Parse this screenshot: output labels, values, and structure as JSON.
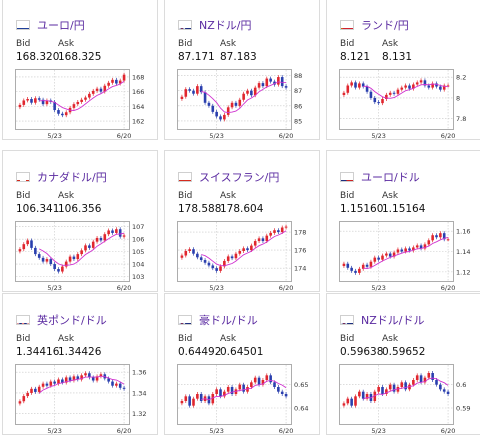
{
  "labels": {
    "bid": "Bid",
    "ask": "Ask"
  },
  "colors": {
    "title": "#5a2aa0",
    "up": "#e0262e",
    "down": "#2a3fae",
    "ma": "#d033d0",
    "grid": "#c8c8c8"
  },
  "cards": [
    {
      "title": "ユーロ/円",
      "flag": "eu-flag-icon",
      "bid": "168.320",
      "ask": "168.325",
      "chart_data": {
        "type": "candlestick",
        "x_ticks": [
          "5/23",
          "6/20"
        ],
        "y_ticks": [
          162,
          164,
          166,
          168
        ],
        "ylim": [
          161.2,
          168.8
        ],
        "closes": [
          164.2,
          164.8,
          165.0,
          164.5,
          165.1,
          164.9,
          164.3,
          164.8,
          164.6,
          163.5,
          163.0,
          162.8,
          163.2,
          163.8,
          164.3,
          164.6,
          164.9,
          165.2,
          165.7,
          166.1,
          166.4,
          166.0,
          166.8,
          167.2,
          167.6,
          167.1,
          167.5,
          168.3
        ]
      }
    },
    {
      "title": "NZドル/円",
      "flag": "nz-flag-icon",
      "bid": "87.171",
      "ask": "87.183",
      "chart_data": {
        "type": "candlestick",
        "x_ticks": [
          "5/23",
          "6/20"
        ],
        "y_ticks": [
          85,
          86,
          87,
          88
        ],
        "ylim": [
          84.6,
          88.3
        ],
        "closes": [
          86.6,
          87.1,
          87.0,
          86.8,
          87.3,
          86.9,
          86.2,
          86.0,
          85.6,
          85.3,
          85.1,
          85.4,
          85.9,
          86.2,
          86.0,
          86.4,
          86.8,
          87.0,
          86.7,
          87.2,
          87.5,
          87.3,
          87.8,
          87.6,
          87.4,
          87.9,
          87.3,
          87.2
        ]
      }
    },
    {
      "title": "ランド/円",
      "flag": "za-flag-icon",
      "bid": "8.121",
      "ask": "8.131",
      "chart_data": {
        "type": "candlestick",
        "x_ticks": [
          "5/23",
          "6/20"
        ],
        "y_ticks": [
          7.8,
          8,
          8.2
        ],
        "ylim": [
          7.72,
          8.26
        ],
        "closes": [
          8.05,
          8.12,
          8.15,
          8.1,
          8.14,
          8.11,
          8.06,
          8.0,
          7.96,
          7.95,
          7.99,
          8.03,
          8.05,
          8.04,
          8.08,
          8.1,
          8.12,
          8.09,
          8.13,
          8.15,
          8.17,
          8.12,
          8.1,
          8.14,
          8.11,
          8.08,
          8.12,
          8.12
        ]
      }
    },
    {
      "title": "カナダドル/円",
      "flag": "ca-flag-icon",
      "bid": "106.341",
      "ask": "106.356",
      "chart_data": {
        "type": "candlestick",
        "x_ticks": [
          "5/23",
          "6/20"
        ],
        "y_ticks": [
          103,
          104,
          105,
          106,
          107
        ],
        "ylim": [
          102.8,
          107.3
        ],
        "closes": [
          105.2,
          105.6,
          105.9,
          105.3,
          104.8,
          104.5,
          104.2,
          104.4,
          104.0,
          103.6,
          103.4,
          103.8,
          104.2,
          104.6,
          104.4,
          104.8,
          105.1,
          105.5,
          105.3,
          105.8,
          106.1,
          105.9,
          106.4,
          106.7,
          106.5,
          106.8,
          106.2,
          106.3
        ]
      }
    },
    {
      "title": "スイスフラン/円",
      "flag": "ch-flag-icon",
      "bid": "178.588",
      "ask": "178.604",
      "chart_data": {
        "type": "candlestick",
        "x_ticks": [
          "5/23",
          "6/20"
        ],
        "y_ticks": [
          174,
          176,
          178
        ],
        "ylim": [
          172.8,
          179.0
        ],
        "closes": [
          175.4,
          175.9,
          176.1,
          175.6,
          175.2,
          174.9,
          174.6,
          174.3,
          174.0,
          173.7,
          174.2,
          174.8,
          175.3,
          175.1,
          175.6,
          175.9,
          176.2,
          176.0,
          176.5,
          177.0,
          177.3,
          177.0,
          177.6,
          177.9,
          178.2,
          178.0,
          178.5,
          178.6
        ]
      }
    },
    {
      "title": "ユーロ/ドル",
      "flag": "us-flag-icon",
      "bid": "1.15160",
      "ask": "1.15164",
      "chart_data": {
        "type": "candlestick",
        "x_ticks": [
          "5/23",
          "6/20"
        ],
        "y_ticks": [
          1.12,
          1.14,
          1.16
        ],
        "ylim": [
          1.113,
          1.168
        ],
        "closes": [
          1.128,
          1.124,
          1.121,
          1.119,
          1.123,
          1.127,
          1.125,
          1.13,
          1.134,
          1.132,
          1.136,
          1.138,
          1.135,
          1.139,
          1.142,
          1.14,
          1.143,
          1.141,
          1.144,
          1.146,
          1.143,
          1.147,
          1.151,
          1.156,
          1.154,
          1.158,
          1.152,
          1.152
        ]
      }
    },
    {
      "title": "英ポンド/ドル",
      "flag": "uk-flag-icon",
      "bid": "1.34416",
      "ask": "1.34426",
      "chart_data": {
        "type": "candlestick",
        "x_ticks": [
          "5/23",
          "6/20"
        ],
        "y_ticks": [
          1.32,
          1.34,
          1.36
        ],
        "ylim": [
          1.312,
          1.366
        ],
        "closes": [
          1.332,
          1.337,
          1.34,
          1.344,
          1.341,
          1.346,
          1.349,
          1.347,
          1.351,
          1.349,
          1.353,
          1.35,
          1.355,
          1.352,
          1.356,
          1.353,
          1.357,
          1.359,
          1.355,
          1.352,
          1.356,
          1.358,
          1.354,
          1.351,
          1.347,
          1.349,
          1.345,
          1.344
        ]
      }
    },
    {
      "title": "豪ドル/ドル",
      "flag": "au-flag-icon",
      "bid": "0.64492",
      "ask": "0.64501",
      "chart_data": {
        "type": "candlestick",
        "x_ticks": [
          "5/23",
          "6/20"
        ],
        "y_ticks": [
          0.64,
          0.65
        ],
        "ylim": [
          0.634,
          0.658
        ],
        "closes": [
          0.643,
          0.645,
          0.641,
          0.644,
          0.646,
          0.643,
          0.645,
          0.642,
          0.646,
          0.648,
          0.645,
          0.647,
          0.649,
          0.646,
          0.648,
          0.65,
          0.647,
          0.649,
          0.651,
          0.653,
          0.65,
          0.652,
          0.654,
          0.651,
          0.649,
          0.647,
          0.646,
          0.645
        ]
      }
    },
    {
      "title": "NZドル/ドル",
      "flag": "nz-flag-icon",
      "bid": "0.59638",
      "ask": "0.59652",
      "chart_data": {
        "type": "candlestick",
        "x_ticks": [
          "5/23",
          "6/20"
        ],
        "y_ticks": [
          0.59,
          0.6
        ],
        "ylim": [
          0.584,
          0.608
        ],
        "closes": [
          0.592,
          0.594,
          0.591,
          0.595,
          0.597,
          0.594,
          0.596,
          0.593,
          0.597,
          0.599,
          0.596,
          0.598,
          0.6,
          0.597,
          0.599,
          0.601,
          0.598,
          0.6,
          0.602,
          0.604,
          0.601,
          0.603,
          0.605,
          0.602,
          0.6,
          0.598,
          0.597,
          0.596
        ]
      }
    }
  ]
}
